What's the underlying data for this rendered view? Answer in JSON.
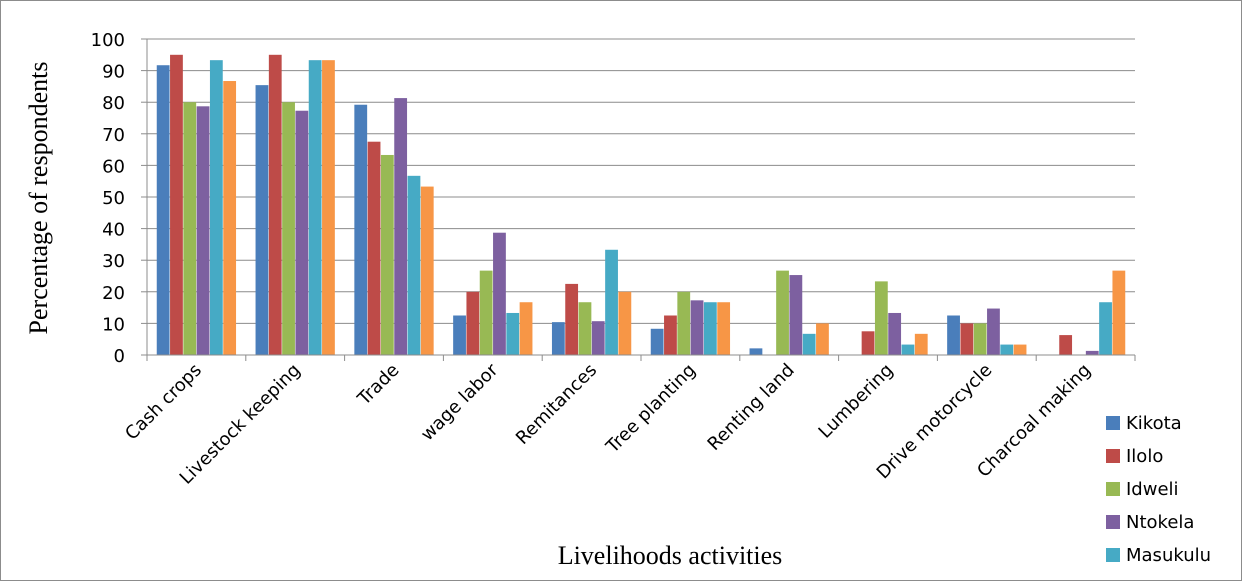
{
  "chart_data": {
    "type": "bar",
    "title": "",
    "xlabel": "Livelihoods activities",
    "ylabel": "Percentage of respondents",
    "ylim": [
      0,
      100
    ],
    "yticks": [
      0,
      10,
      20,
      30,
      40,
      50,
      60,
      70,
      80,
      90,
      100
    ],
    "grid": true,
    "legend_position": "bottom-right",
    "categories": [
      "Cash crops",
      "Livestock keeping",
      "Trade",
      "wage labor",
      "Remitances",
      "Tree planting",
      "Renting land",
      "Lumbering",
      "Drive motorcycle",
      "Charcoal making"
    ],
    "series": [
      {
        "name": "Kikota",
        "color": "#4a7ebb",
        "values": [
          91.7,
          85.4,
          79.2,
          12.5,
          10.4,
          8.3,
          2.1,
          0,
          12.5,
          0
        ]
      },
      {
        "name": "Ilolo",
        "color": "#be4b48",
        "values": [
          95.0,
          95.0,
          67.5,
          20.0,
          22.5,
          12.5,
          0,
          7.5,
          10.0,
          6.3
        ]
      },
      {
        "name": "Idweli",
        "color": "#98b954",
        "values": [
          80.0,
          80.0,
          63.3,
          26.7,
          16.7,
          20.0,
          26.7,
          23.3,
          10.0,
          0
        ]
      },
      {
        "name": "Ntokela",
        "color": "#7d60a0",
        "values": [
          78.7,
          77.3,
          81.3,
          38.7,
          10.7,
          17.3,
          25.3,
          13.3,
          14.7,
          1.3
        ]
      },
      {
        "name": "Masukulu",
        "color": "#46aac5",
        "values": [
          93.3,
          93.3,
          56.7,
          13.3,
          33.3,
          16.7,
          6.7,
          3.3,
          3.3,
          16.7
        ]
      },
      {
        "name": "",
        "color": "#f79646",
        "values": [
          86.7,
          93.3,
          53.3,
          16.7,
          20.0,
          16.7,
          10.0,
          6.7,
          3.3,
          26.7
        ]
      }
    ]
  }
}
